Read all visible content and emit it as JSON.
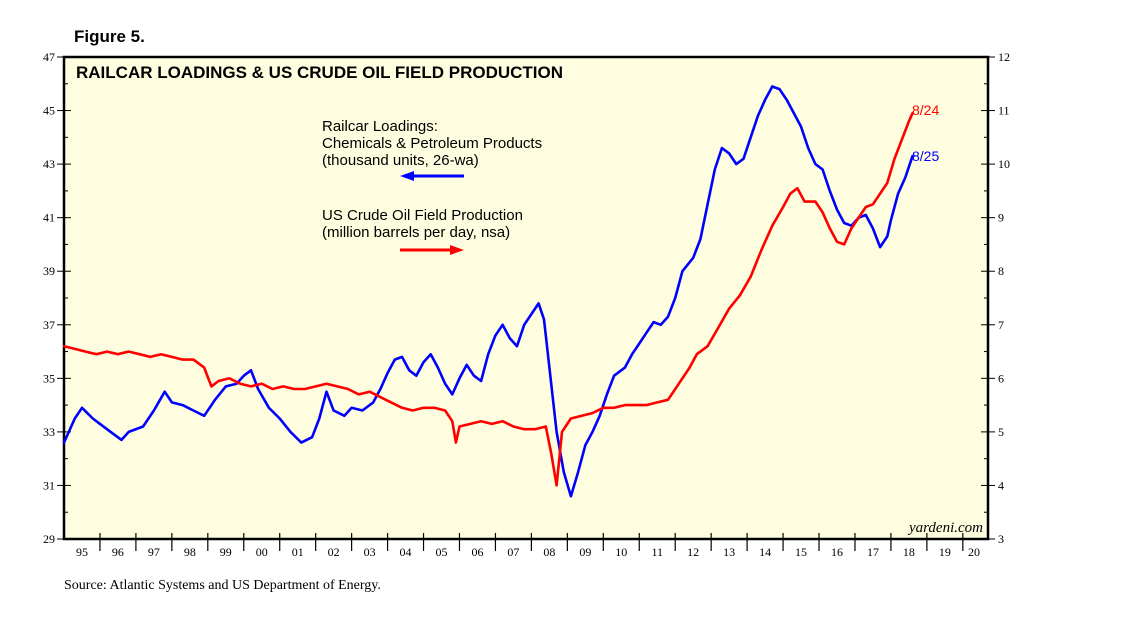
{
  "figure_label": "Figure 5.",
  "source": "Source: Atlantic Systems and US Department of Energy.",
  "colors": {
    "plot_bg": "#fffde0",
    "blue": "#0000ff",
    "red": "#ff0000"
  },
  "chart_data": {
    "type": "line",
    "title": "RAILCAR LOADINGS & US CRUDE OIL FIELD PRODUCTION",
    "brand": "yardeni.com",
    "x_range": [
      1995,
      2020.7
    ],
    "x_tick_labels": [
      "95",
      "96",
      "97",
      "98",
      "99",
      "00",
      "01",
      "02",
      "03",
      "04",
      "05",
      "06",
      "07",
      "08",
      "09",
      "10",
      "11",
      "12",
      "13",
      "14",
      "15",
      "16",
      "17",
      "18",
      "19",
      "20"
    ],
    "y_left": {
      "range": [
        29,
        47
      ],
      "ticks": [
        "29",
        "31",
        "33",
        "35",
        "37",
        "39",
        "41",
        "43",
        "45",
        "47"
      ]
    },
    "y_right": {
      "range": [
        3,
        12
      ],
      "ticks": [
        "3",
        "4",
        "5",
        "6",
        "7",
        "8",
        "9",
        "10",
        "11",
        "12"
      ]
    },
    "annotations": {
      "railcar": [
        "Railcar Loadings:",
        "Chemicals & Petroleum Products",
        "(thousand units, 26-wa)"
      ],
      "oil": [
        "US Crude Oil Field Production",
        "(million barrels per day, nsa)"
      ]
    },
    "series": [
      {
        "name": "Railcar Loadings: Chemicals & Petroleum Products (thousand units, 26-wa)",
        "axis": "left",
        "color": "#0000ff",
        "end_label": "8/25",
        "points": [
          [
            1995.0,
            32.6
          ],
          [
            1995.3,
            33.5
          ],
          [
            1995.5,
            33.9
          ],
          [
            1995.8,
            33.5
          ],
          [
            1996.0,
            33.3
          ],
          [
            1996.3,
            33.0
          ],
          [
            1996.6,
            32.7
          ],
          [
            1996.8,
            33.0
          ],
          [
            1997.2,
            33.2
          ],
          [
            1997.5,
            33.8
          ],
          [
            1997.8,
            34.5
          ],
          [
            1998.0,
            34.1
          ],
          [
            1998.3,
            34.0
          ],
          [
            1998.6,
            33.8
          ],
          [
            1998.9,
            33.6
          ],
          [
            1999.2,
            34.2
          ],
          [
            1999.5,
            34.7
          ],
          [
            1999.8,
            34.8
          ],
          [
            2000.0,
            35.1
          ],
          [
            2000.2,
            35.3
          ],
          [
            2000.4,
            34.6
          ],
          [
            2000.7,
            33.9
          ],
          [
            2001.0,
            33.5
          ],
          [
            2001.3,
            33.0
          ],
          [
            2001.6,
            32.6
          ],
          [
            2001.9,
            32.8
          ],
          [
            2002.1,
            33.5
          ],
          [
            2002.3,
            34.5
          ],
          [
            2002.5,
            33.8
          ],
          [
            2002.8,
            33.6
          ],
          [
            2003.0,
            33.9
          ],
          [
            2003.3,
            33.8
          ],
          [
            2003.6,
            34.1
          ],
          [
            2003.8,
            34.6
          ],
          [
            2004.0,
            35.2
          ],
          [
            2004.2,
            35.7
          ],
          [
            2004.4,
            35.8
          ],
          [
            2004.6,
            35.3
          ],
          [
            2004.8,
            35.1
          ],
          [
            2005.0,
            35.6
          ],
          [
            2005.2,
            35.9
          ],
          [
            2005.4,
            35.4
          ],
          [
            2005.6,
            34.8
          ],
          [
            2005.8,
            34.4
          ],
          [
            2006.0,
            35.0
          ],
          [
            2006.2,
            35.5
          ],
          [
            2006.4,
            35.1
          ],
          [
            2006.6,
            34.9
          ],
          [
            2006.8,
            35.9
          ],
          [
            2007.0,
            36.6
          ],
          [
            2007.2,
            37.0
          ],
          [
            2007.4,
            36.5
          ],
          [
            2007.6,
            36.2
          ],
          [
            2007.8,
            37.0
          ],
          [
            2008.0,
            37.4
          ],
          [
            2008.2,
            37.8
          ],
          [
            2008.35,
            37.2
          ],
          [
            2008.5,
            35.4
          ],
          [
            2008.7,
            33.0
          ],
          [
            2008.9,
            31.5
          ],
          [
            2009.1,
            30.6
          ],
          [
            2009.3,
            31.5
          ],
          [
            2009.5,
            32.5
          ],
          [
            2009.7,
            33.0
          ],
          [
            2009.9,
            33.6
          ],
          [
            2010.1,
            34.4
          ],
          [
            2010.3,
            35.1
          ],
          [
            2010.6,
            35.4
          ],
          [
            2010.8,
            35.9
          ],
          [
            2011.0,
            36.3
          ],
          [
            2011.2,
            36.7
          ],
          [
            2011.4,
            37.1
          ],
          [
            2011.6,
            37.0
          ],
          [
            2011.8,
            37.3
          ],
          [
            2012.0,
            38.0
          ],
          [
            2012.2,
            39.0
          ],
          [
            2012.5,
            39.5
          ],
          [
            2012.7,
            40.2
          ],
          [
            2012.9,
            41.5
          ],
          [
            2013.1,
            42.8
          ],
          [
            2013.3,
            43.6
          ],
          [
            2013.5,
            43.4
          ],
          [
            2013.7,
            43.0
          ],
          [
            2013.9,
            43.2
          ],
          [
            2014.1,
            44.0
          ],
          [
            2014.3,
            44.8
          ],
          [
            2014.5,
            45.4
          ],
          [
            2014.7,
            45.9
          ],
          [
            2014.9,
            45.8
          ],
          [
            2015.1,
            45.4
          ],
          [
            2015.3,
            44.9
          ],
          [
            2015.5,
            44.4
          ],
          [
            2015.7,
            43.6
          ],
          [
            2015.9,
            43.0
          ],
          [
            2016.1,
            42.8
          ],
          [
            2016.3,
            42.0
          ],
          [
            2016.5,
            41.3
          ],
          [
            2016.7,
            40.8
          ],
          [
            2016.9,
            40.7
          ],
          [
            2017.1,
            41.0
          ],
          [
            2017.3,
            41.1
          ],
          [
            2017.5,
            40.6
          ],
          [
            2017.7,
            39.9
          ],
          [
            2017.9,
            40.3
          ],
          [
            2018.0,
            40.9
          ],
          [
            2018.2,
            41.9
          ],
          [
            2018.4,
            42.5
          ],
          [
            2018.6,
            43.3
          ]
        ]
      },
      {
        "name": "US Crude Oil Field Production (million barrels per day, nsa)",
        "axis": "right",
        "color": "#ff0000",
        "end_label": "8/24",
        "points": [
          [
            1995.0,
            6.6
          ],
          [
            1995.3,
            6.55
          ],
          [
            1995.6,
            6.5
          ],
          [
            1995.9,
            6.45
          ],
          [
            1996.2,
            6.5
          ],
          [
            1996.5,
            6.45
          ],
          [
            1996.8,
            6.5
          ],
          [
            1997.1,
            6.45
          ],
          [
            1997.4,
            6.4
          ],
          [
            1997.7,
            6.45
          ],
          [
            1998.0,
            6.4
          ],
          [
            1998.3,
            6.35
          ],
          [
            1998.6,
            6.35
          ],
          [
            1998.9,
            6.2
          ],
          [
            1999.1,
            5.85
          ],
          [
            1999.3,
            5.95
          ],
          [
            1999.6,
            6.0
          ],
          [
            1999.9,
            5.9
          ],
          [
            2000.2,
            5.85
          ],
          [
            2000.5,
            5.9
          ],
          [
            2000.8,
            5.8
          ],
          [
            2001.1,
            5.85
          ],
          [
            2001.4,
            5.8
          ],
          [
            2001.7,
            5.8
          ],
          [
            2002.0,
            5.85
          ],
          [
            2002.3,
            5.9
          ],
          [
            2002.6,
            5.85
          ],
          [
            2002.9,
            5.8
          ],
          [
            2003.2,
            5.7
          ],
          [
            2003.5,
            5.75
          ],
          [
            2003.8,
            5.65
          ],
          [
            2004.1,
            5.55
          ],
          [
            2004.4,
            5.45
          ],
          [
            2004.7,
            5.4
          ],
          [
            2005.0,
            5.45
          ],
          [
            2005.3,
            5.45
          ],
          [
            2005.6,
            5.4
          ],
          [
            2005.8,
            5.2
          ],
          [
            2005.9,
            4.8
          ],
          [
            2006.0,
            5.1
          ],
          [
            2006.3,
            5.15
          ],
          [
            2006.6,
            5.2
          ],
          [
            2006.9,
            5.15
          ],
          [
            2007.2,
            5.2
          ],
          [
            2007.5,
            5.1
          ],
          [
            2007.8,
            5.05
          ],
          [
            2008.1,
            5.05
          ],
          [
            2008.4,
            5.1
          ],
          [
            2008.55,
            4.6
          ],
          [
            2008.7,
            4.0
          ],
          [
            2008.85,
            5.0
          ],
          [
            2009.1,
            5.25
          ],
          [
            2009.4,
            5.3
          ],
          [
            2009.7,
            5.35
          ],
          [
            2010.0,
            5.45
          ],
          [
            2010.3,
            5.45
          ],
          [
            2010.6,
            5.5
          ],
          [
            2010.9,
            5.5
          ],
          [
            2011.2,
            5.5
          ],
          [
            2011.5,
            5.55
          ],
          [
            2011.8,
            5.6
          ],
          [
            2012.1,
            5.9
          ],
          [
            2012.4,
            6.2
          ],
          [
            2012.6,
            6.45
          ],
          [
            2012.9,
            6.6
          ],
          [
            2013.2,
            6.95
          ],
          [
            2013.5,
            7.3
          ],
          [
            2013.8,
            7.55
          ],
          [
            2014.1,
            7.9
          ],
          [
            2014.4,
            8.4
          ],
          [
            2014.7,
            8.85
          ],
          [
            2015.0,
            9.2
          ],
          [
            2015.2,
            9.45
          ],
          [
            2015.4,
            9.55
          ],
          [
            2015.6,
            9.3
          ],
          [
            2015.9,
            9.3
          ],
          [
            2016.1,
            9.1
          ],
          [
            2016.3,
            8.8
          ],
          [
            2016.5,
            8.55
          ],
          [
            2016.7,
            8.5
          ],
          [
            2016.9,
            8.8
          ],
          [
            2017.1,
            9.0
          ],
          [
            2017.3,
            9.2
          ],
          [
            2017.5,
            9.25
          ],
          [
            2017.7,
            9.45
          ],
          [
            2017.9,
            9.65
          ],
          [
            2018.1,
            10.1
          ],
          [
            2018.3,
            10.45
          ],
          [
            2018.5,
            10.8
          ],
          [
            2018.6,
            10.95
          ]
        ]
      }
    ]
  }
}
